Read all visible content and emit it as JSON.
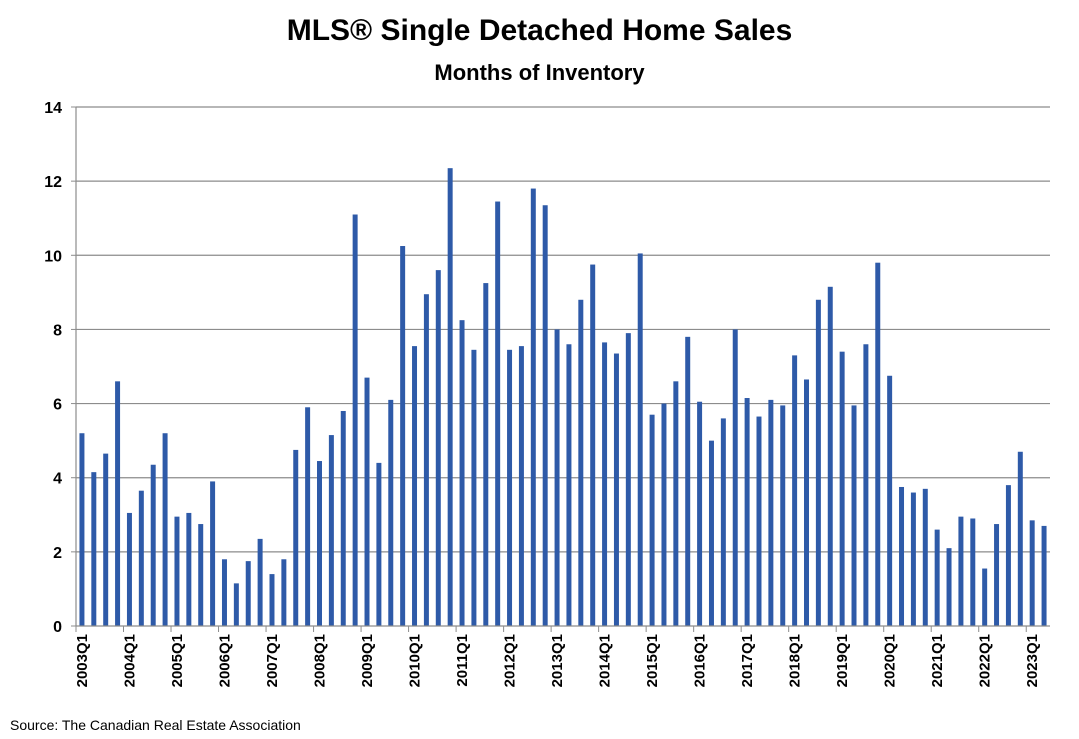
{
  "chart_data": {
    "type": "bar",
    "title": "MLS® Single Detached Home Sales",
    "subtitle": "Months of Inventory",
    "xlabel": "",
    "ylabel": "",
    "ylim": [
      0,
      14
    ],
    "yticks": [
      0,
      2,
      4,
      6,
      8,
      10,
      12,
      14
    ],
    "grid": true,
    "bar_color": "#2E5AA8",
    "categories": [
      "2003Q1",
      "2003Q2",
      "2003Q3",
      "2003Q4",
      "2004Q1",
      "2004Q2",
      "2004Q3",
      "2004Q4",
      "2005Q1",
      "2005Q2",
      "2005Q3",
      "2005Q4",
      "2006Q1",
      "2006Q2",
      "2006Q3",
      "2006Q4",
      "2007Q1",
      "2007Q2",
      "2007Q3",
      "2007Q4",
      "2008Q1",
      "2008Q2",
      "2008Q3",
      "2008Q4",
      "2009Q1",
      "2009Q2",
      "2009Q3",
      "2009Q4",
      "2010Q1",
      "2010Q2",
      "2010Q3",
      "2010Q4",
      "2011Q1",
      "2011Q2",
      "2011Q3",
      "2011Q4",
      "2012Q1",
      "2012Q2",
      "2012Q3",
      "2012Q4",
      "2013Q1",
      "2013Q2",
      "2013Q3",
      "2013Q4",
      "2014Q1",
      "2014Q2",
      "2014Q3",
      "2014Q4",
      "2015Q1",
      "2015Q2",
      "2015Q3",
      "2015Q4",
      "2016Q1",
      "2016Q2",
      "2016Q3",
      "2016Q4",
      "2017Q1",
      "2017Q2",
      "2017Q3",
      "2017Q4",
      "2018Q1",
      "2018Q2",
      "2018Q3",
      "2018Q4",
      "2019Q1",
      "2019Q2",
      "2019Q3",
      "2019Q4",
      "2020Q1",
      "2020Q2",
      "2020Q3",
      "2020Q4",
      "2021Q1",
      "2021Q2",
      "2021Q3",
      "2021Q4",
      "2022Q1",
      "2022Q2",
      "2022Q3",
      "2022Q4",
      "2023Q1",
      "2023Q2"
    ],
    "values": [
      5.2,
      4.15,
      4.65,
      6.6,
      3.05,
      3.65,
      4.35,
      5.2,
      2.95,
      3.05,
      2.75,
      3.9,
      1.8,
      1.15,
      1.75,
      2.35,
      1.4,
      1.8,
      4.75,
      5.9,
      4.45,
      5.15,
      5.8,
      11.1,
      6.7,
      4.4,
      6.1,
      10.25,
      7.55,
      8.95,
      9.6,
      12.35,
      8.25,
      7.45,
      9.25,
      11.45,
      7.45,
      7.55,
      11.8,
      11.35,
      8.0,
      7.6,
      8.8,
      9.75,
      7.65,
      7.35,
      7.9,
      10.05,
      5.7,
      6.0,
      6.6,
      7.8,
      6.05,
      5.0,
      5.6,
      8.0,
      6.15,
      5.65,
      6.1,
      5.95,
      7.3,
      6.65,
      8.8,
      9.15,
      7.4,
      5.95,
      7.6,
      9.8,
      6.75,
      3.75,
      3.6,
      3.7,
      2.6,
      2.1,
      2.95,
      2.9,
      1.55,
      2.75,
      3.8,
      4.7,
      2.85,
      2.7
    ],
    "label_every": 4
  },
  "source": "Source: The Canadian Real Estate Association"
}
